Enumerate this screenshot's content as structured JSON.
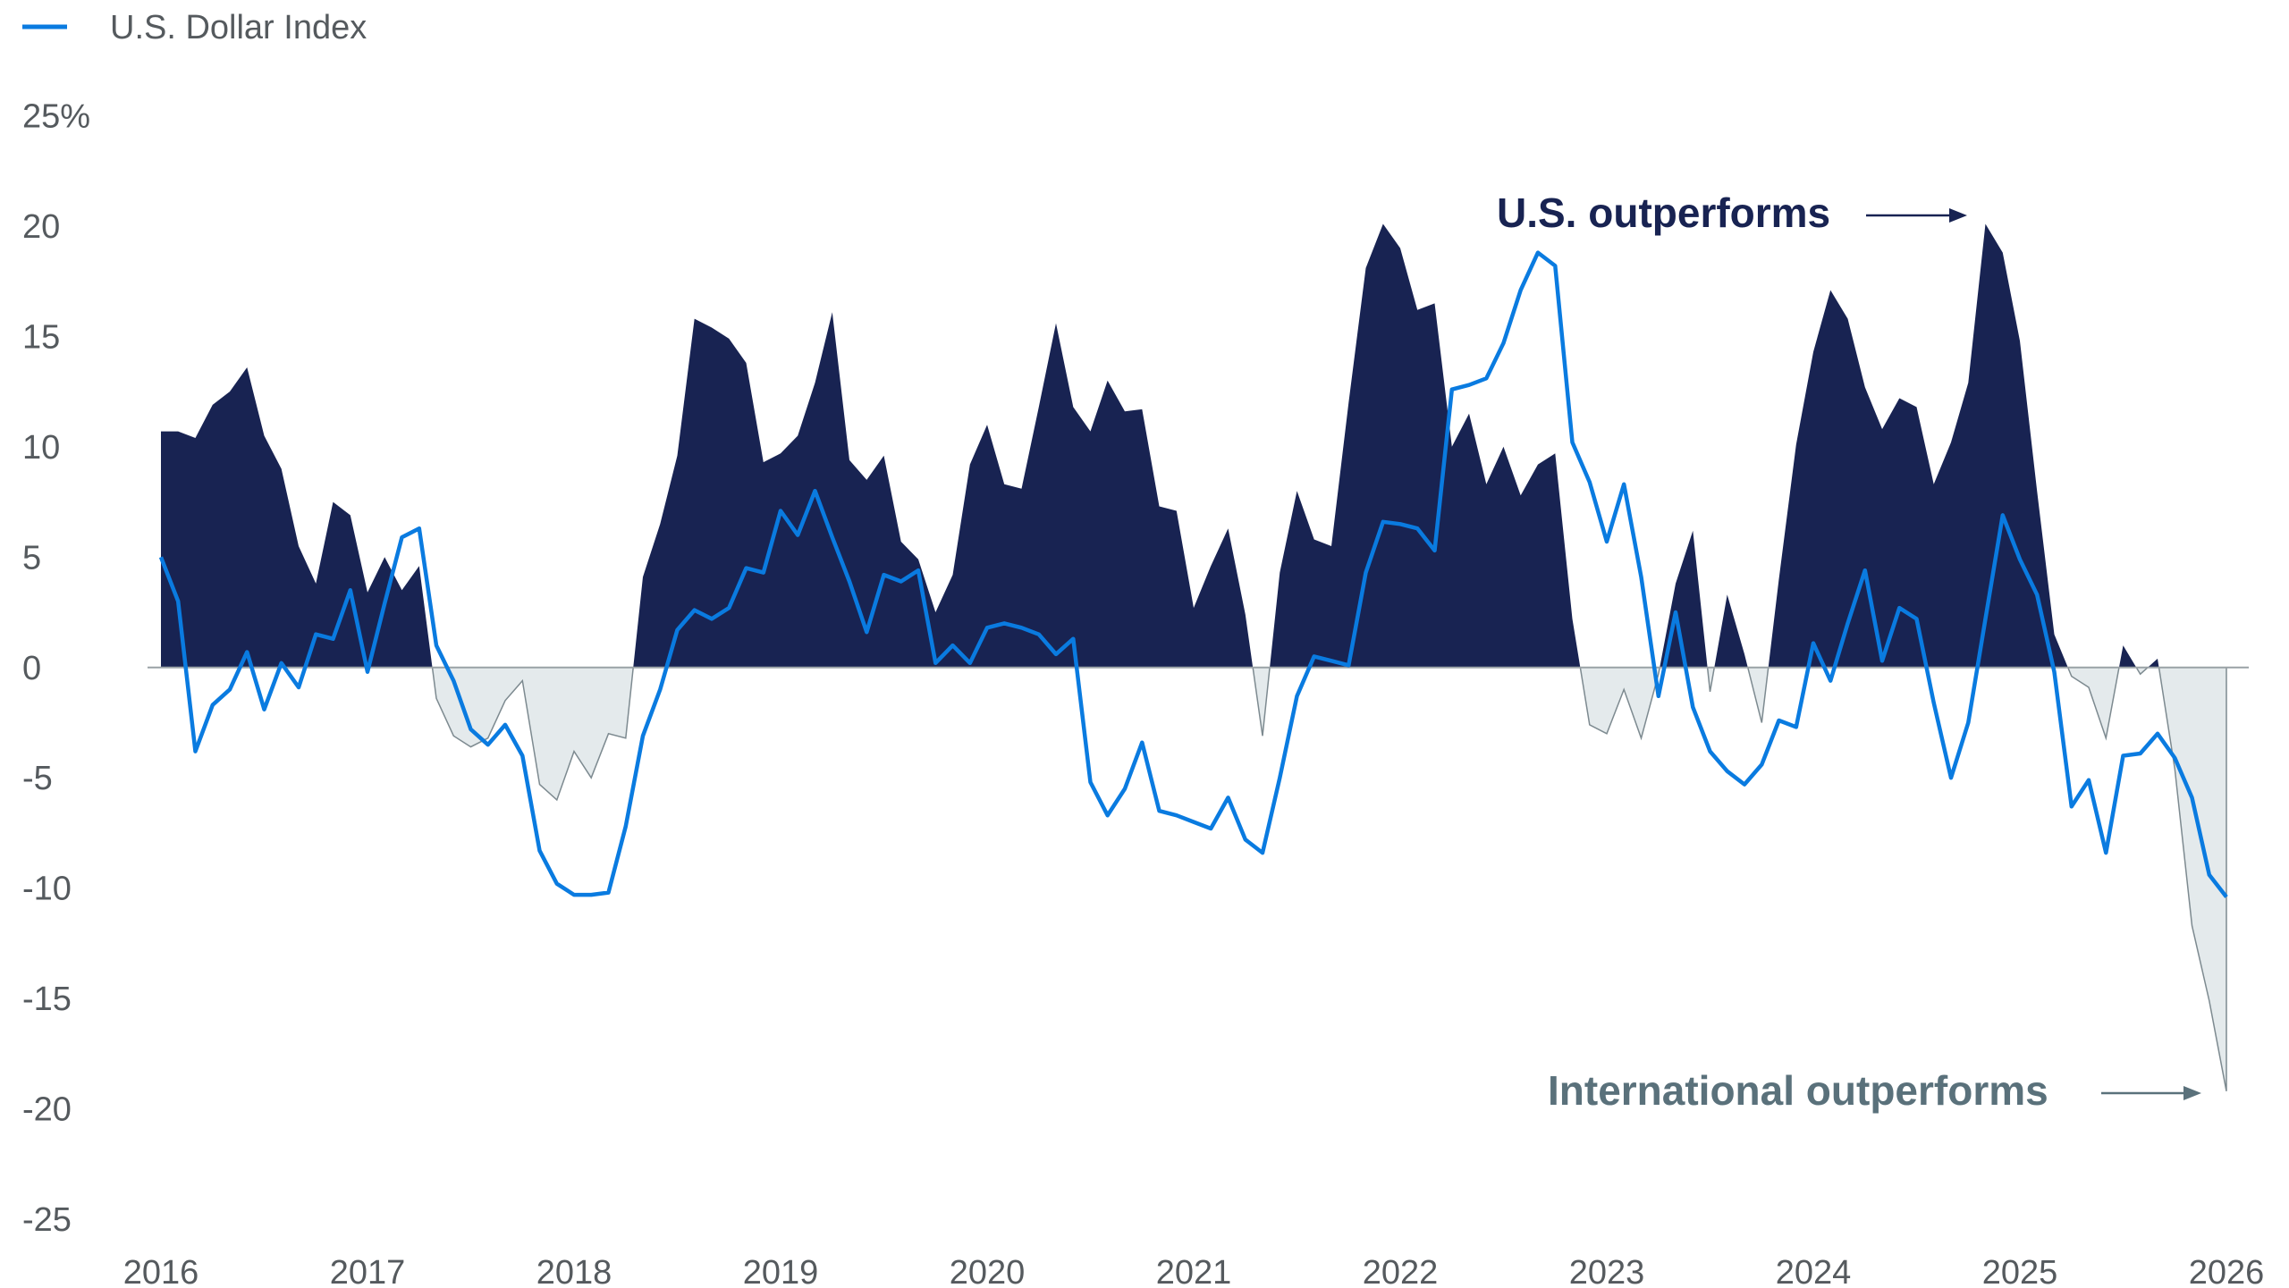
{
  "chart_data": {
    "type": "area",
    "title": "",
    "xlabel": "",
    "ylabel": "",
    "y_unit_label": "25%",
    "ylim": [
      -25,
      25
    ],
    "xlim": [
      "2016-01",
      "2026-01"
    ],
    "y_ticks": [
      {
        "value": 25,
        "label": "25%"
      },
      {
        "value": 20,
        "label": "20"
      },
      {
        "value": 15,
        "label": "15"
      },
      {
        "value": 10,
        "label": "10"
      },
      {
        "value": 5,
        "label": "5"
      },
      {
        "value": 0,
        "label": "0"
      },
      {
        "value": -5,
        "label": "-5"
      },
      {
        "value": -10,
        "label": "-10"
      },
      {
        "value": -15,
        "label": "-15"
      },
      {
        "value": -20,
        "label": "-20"
      },
      {
        "value": -25,
        "label": "-25"
      }
    ],
    "x_ticks": [
      "2016",
      "2017",
      "2018",
      "2019",
      "2020",
      "2021",
      "2022",
      "2023",
      "2024",
      "2025",
      "2026"
    ],
    "grid": false,
    "legend": {
      "placement": "top-left",
      "entries": [
        {
          "name": "U.S. Dollar Index",
          "color": "#0a7be0"
        }
      ]
    },
    "annotations": {
      "us": "U.S. outperforms",
      "intl": "International outperforms"
    },
    "colors": {
      "us_outperforms_fill": "#182352",
      "intl_outperforms_fill": "#e4eaec",
      "intl_outperforms_stroke": "#7d8a90",
      "dollar_index_line": "#0a7be0",
      "zero_line": "#9aa2a6"
    },
    "x": [
      "2016-01",
      "2016-02",
      "2016-03",
      "2016-04",
      "2016-05",
      "2016-06",
      "2016-07",
      "2016-08",
      "2016-09",
      "2016-10",
      "2016-11",
      "2016-12",
      "2017-01",
      "2017-02",
      "2017-03",
      "2017-04",
      "2017-05",
      "2017-06",
      "2017-07",
      "2017-08",
      "2017-09",
      "2017-10",
      "2017-11",
      "2017-12",
      "2018-01",
      "2018-02",
      "2018-03",
      "2018-04",
      "2018-05",
      "2018-06",
      "2018-07",
      "2018-08",
      "2018-09",
      "2018-10",
      "2018-11",
      "2018-12",
      "2019-01",
      "2019-02",
      "2019-03",
      "2019-04",
      "2019-05",
      "2019-06",
      "2019-07",
      "2019-08",
      "2019-09",
      "2019-10",
      "2019-11",
      "2019-12",
      "2020-01",
      "2020-02",
      "2020-03",
      "2020-04",
      "2020-05",
      "2020-06",
      "2020-07",
      "2020-08",
      "2020-09",
      "2020-10",
      "2020-11",
      "2020-12",
      "2021-01",
      "2021-02",
      "2021-03",
      "2021-04",
      "2021-05",
      "2021-06",
      "2021-07",
      "2021-08",
      "2021-09",
      "2021-10",
      "2021-11",
      "2021-12",
      "2022-01",
      "2022-02",
      "2022-03",
      "2022-04",
      "2022-05",
      "2022-06",
      "2022-07",
      "2022-08",
      "2022-09",
      "2022-10",
      "2022-11",
      "2022-12",
      "2023-01",
      "2023-02",
      "2023-03",
      "2023-04",
      "2023-05",
      "2023-06",
      "2023-07",
      "2023-08",
      "2023-09",
      "2023-10",
      "2023-11",
      "2023-12",
      "2024-01",
      "2024-02",
      "2024-03",
      "2024-04",
      "2024-05",
      "2024-06",
      "2024-07",
      "2024-08",
      "2024-09",
      "2024-10",
      "2024-11",
      "2024-12",
      "2025-01",
      "2025-02",
      "2025-03",
      "2025-04",
      "2025-05",
      "2025-06",
      "2025-07",
      "2025-08",
      "2025-09",
      "2025-10",
      "2025-11",
      "2025-12",
      "2026-01"
    ],
    "series": [
      {
        "type": "area",
        "values": [
          10.7,
          10.7,
          10.4,
          11.9,
          12.5,
          13.6,
          10.5,
          9.0,
          5.5,
          3.8,
          7.5,
          6.9,
          3.4,
          5.0,
          3.5,
          4.6,
          -1.4,
          -3.1,
          -3.6,
          -3.2,
          -1.5,
          -0.6,
          -5.3,
          -6.0,
          -3.8,
          -5.0,
          -3.0,
          -3.2,
          4.1,
          6.5,
          9.6,
          15.8,
          15.4,
          14.9,
          13.8,
          9.3,
          9.7,
          10.5,
          12.9,
          16.1,
          9.4,
          8.5,
          9.6,
          5.7,
          4.9,
          2.5,
          4.2,
          9.2,
          11.0,
          8.3,
          8.1,
          11.8,
          15.6,
          11.8,
          10.7,
          13.0,
          11.6,
          11.7,
          7.3,
          7.1,
          2.7,
          4.6,
          6.3,
          2.4,
          -3.1,
          4.3,
          8.0,
          5.8,
          5.5,
          12.0,
          18.1,
          20.1,
          19.0,
          16.2,
          16.5,
          10.0,
          11.5,
          8.3,
          10.0,
          7.8,
          9.2,
          9.7,
          2.2,
          -2.6,
          -3.0,
          -1.0,
          -3.2,
          -0.3,
          3.8,
          6.2,
          -1.1,
          3.3,
          0.6,
          -2.5,
          4.0,
          10.1,
          14.3,
          17.1,
          15.8,
          12.7,
          10.8,
          12.2,
          11.8,
          8.3,
          10.2,
          12.9,
          20.1,
          18.8,
          14.8,
          8.0,
          1.5,
          -0.4,
          -0.9,
          -3.2,
          1.0,
          -0.3,
          0.4,
          -4.6,
          -11.7,
          -15.1,
          -19.2
        ]
      },
      {
        "name": "U.S. Dollar Index",
        "type": "line",
        "values": [
          5.0,
          3.0,
          -3.8,
          -1.7,
          -1.0,
          0.7,
          -1.9,
          0.2,
          -0.9,
          1.5,
          1.3,
          3.5,
          -0.2,
          2.9,
          5.9,
          6.3,
          1.0,
          -0.6,
          -2.8,
          -3.5,
          -2.6,
          -4.0,
          -8.3,
          -9.8,
          -10.3,
          -10.3,
          -10.2,
          -7.2,
          -3.1,
          -1.0,
          1.7,
          2.6,
          2.2,
          2.7,
          4.5,
          4.3,
          7.1,
          6.0,
          8.0,
          5.9,
          3.9,
          1.6,
          4.2,
          3.9,
          4.4,
          0.2,
          1.0,
          0.2,
          1.8,
          2.0,
          1.8,
          1.5,
          0.6,
          1.3,
          -5.2,
          -6.7,
          -5.5,
          -3.4,
          -6.5,
          -6.7,
          -7.0,
          -7.3,
          -5.9,
          -7.8,
          -8.4,
          -5.0,
          -1.3,
          0.5,
          0.3,
          0.1,
          4.3,
          6.6,
          6.5,
          6.3,
          5.3,
          12.6,
          12.8,
          13.1,
          14.7,
          17.1,
          18.8,
          18.2,
          10.2,
          8.4,
          5.7,
          8.3,
          4.1,
          -1.3,
          2.5,
          -1.8,
          -3.8,
          -4.7,
          -5.3,
          -4.4,
          -2.4,
          -2.7,
          1.1,
          -0.6,
          2.0,
          4.4,
          0.3,
          2.7,
          2.2,
          -1.6,
          -5.0,
          -2.5,
          2.2,
          6.9,
          4.9,
          3.3,
          -0.2,
          -6.3,
          -5.1,
          -8.4,
          -4.0,
          -3.9,
          -3.0,
          -4.1,
          -5.9,
          -9.4,
          -10.4
        ]
      }
    ]
  }
}
